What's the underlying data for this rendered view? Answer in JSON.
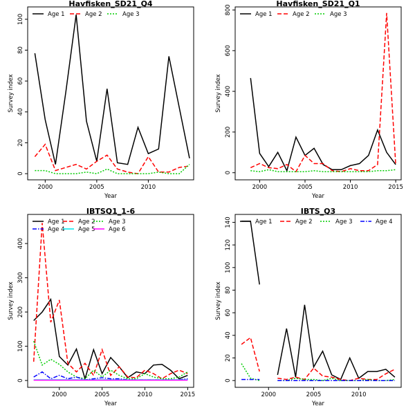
{
  "chart_data": [
    {
      "type": "line",
      "title": "Havfisken_SD21_Q4",
      "xlabel": "Year",
      "ylabel": "Survey index",
      "xlim": [
        1998.3,
        2014.4
      ],
      "ylim": [
        -4,
        108
      ],
      "xticks": [
        2000,
        2005,
        2010
      ],
      "yticks": [
        0,
        20,
        40,
        60,
        80,
        100
      ],
      "legend_position": "top-left",
      "legend_columns": 3,
      "series": [
        {
          "name": "Age 1",
          "color": "#000000",
          "dash": "solid",
          "x": [
            1999,
            2000,
            2001,
            2002,
            2003,
            2004,
            2005,
            2006,
            2007,
            2008,
            2009,
            2010,
            2011,
            2012,
            2013,
            2014
          ],
          "y": [
            78,
            35,
            6,
            53,
            103,
            34,
            8,
            55,
            7,
            6,
            30,
            13,
            16,
            76,
            43,
            10
          ]
        },
        {
          "name": "Age 2",
          "color": "#ff0000",
          "dash": "dashed",
          "x": [
            1999,
            2000,
            2001,
            2002,
            2003,
            2004,
            2005,
            2006,
            2007,
            2008,
            2009,
            2010,
            2011,
            2012,
            2013,
            2014
          ],
          "y": [
            11,
            19,
            2,
            4,
            6,
            3,
            8,
            12,
            3,
            1,
            0,
            11,
            1,
            1,
            4,
            5
          ]
        },
        {
          "name": "Age 3",
          "color": "#00cc00",
          "dash": "dotted",
          "x": [
            1999,
            2000,
            2001,
            2002,
            2003,
            2004,
            2005,
            2006,
            2007,
            2008,
            2009,
            2010,
            2011,
            2012,
            2013,
            2014
          ],
          "y": [
            2,
            2,
            0,
            0,
            0,
            1,
            0,
            3,
            0,
            0,
            0,
            0,
            1,
            0,
            0,
            6
          ]
        }
      ]
    },
    {
      "type": "line",
      "title": "Havfisken_SD21_Q1",
      "xlabel": "Year",
      "ylabel": "Survey index",
      "xlim": [
        1997.3,
        2015.6
      ],
      "ylim": [
        -35,
        815
      ],
      "xticks": [
        2000,
        2005,
        2010,
        2015
      ],
      "yticks": [
        0,
        200,
        400,
        600,
        800
      ],
      "legend_position": "top-left",
      "legend_columns": 3,
      "series": [
        {
          "name": "Age 1",
          "color": "#000000",
          "dash": "solid",
          "x": [
            1999,
            2000,
            2001,
            2002,
            2003,
            2004,
            2005,
            2006,
            2007,
            2008,
            2009,
            2010,
            2011,
            2012,
            2013,
            2014,
            2015
          ],
          "y": [
            465,
            95,
            30,
            100,
            10,
            175,
            85,
            120,
            40,
            15,
            15,
            35,
            45,
            85,
            210,
            100,
            40
          ]
        },
        {
          "name": "Age 2",
          "color": "#ff0000",
          "dash": "dashed",
          "x": [
            1999,
            2000,
            2001,
            2002,
            2003,
            2004,
            2005,
            2006,
            2007,
            2008,
            2009,
            2010,
            2011,
            2012,
            2013,
            2014,
            2015
          ],
          "y": [
            25,
            45,
            25,
            20,
            40,
            5,
            85,
            45,
            45,
            10,
            5,
            20,
            10,
            10,
            40,
            785,
            40
          ]
        },
        {
          "name": "Age 3",
          "color": "#00cc00",
          "dash": "dotted",
          "x": [
            1999,
            2000,
            2001,
            2002,
            2003,
            2004,
            2005,
            2006,
            2007,
            2008,
            2009,
            2010,
            2011,
            2012,
            2013,
            2014,
            2015
          ],
          "y": [
            10,
            5,
            15,
            5,
            5,
            5,
            5,
            10,
            5,
            5,
            5,
            5,
            5,
            5,
            10,
            10,
            15
          ]
        }
      ]
    },
    {
      "type": "line",
      "title": "IBTSQ1_1-6",
      "xlabel": "Year",
      "ylabel": "Survey index",
      "xlim": [
        1996.3,
        2015.7
      ],
      "ylim": [
        -20,
        485
      ],
      "xticks": [
        2000,
        2005,
        2010,
        2015
      ],
      "yticks": [
        0,
        100,
        200,
        300,
        400
      ],
      "legend_position": "top-left",
      "legend_columns": 3,
      "series": [
        {
          "name": "Age 1",
          "color": "#000000",
          "dash": "solid",
          "x": [
            1997,
            1998,
            1999,
            2000,
            2001,
            2002,
            2003,
            2004,
            2005,
            2006,
            2007,
            2008,
            2009,
            2010,
            2011,
            2012,
            2013,
            2014,
            2015
          ],
          "y": [
            175,
            200,
            237,
            70,
            45,
            92,
            5,
            90,
            20,
            67,
            40,
            8,
            25,
            20,
            45,
            47,
            30,
            5,
            15
          ]
        },
        {
          "name": "Age 2",
          "color": "#ff0000",
          "dash": "dashed",
          "x": [
            1997,
            1998,
            1999,
            2000,
            2001,
            2002,
            2003,
            2004,
            2005,
            2006,
            2007,
            2008,
            2009,
            2010,
            2011,
            2012,
            2013,
            2014,
            2015
          ],
          "y": [
            55,
            460,
            170,
            235,
            50,
            25,
            50,
            15,
            90,
            15,
            40,
            10,
            8,
            30,
            20,
            5,
            20,
            30,
            20
          ]
        },
        {
          "name": "Age 3",
          "color": "#00cc00",
          "dash": "dotted",
          "x": [
            1997,
            1998,
            1999,
            2000,
            2001,
            2002,
            2003,
            2004,
            2005,
            2006,
            2007,
            2008,
            2009,
            2010,
            2011,
            2012,
            2013,
            2014,
            2015
          ],
          "y": [
            115,
            45,
            62,
            47,
            25,
            10,
            5,
            30,
            10,
            30,
            15,
            5,
            5,
            20,
            10,
            5,
            5,
            10,
            25
          ]
        },
        {
          "name": "Age 4",
          "color": "#0000ff",
          "dash": "dashdot",
          "x": [
            1997,
            1998,
            1999,
            2000,
            2001,
            2002,
            2003,
            2004,
            2005,
            2006,
            2007,
            2008,
            2009,
            2010,
            2011,
            2012,
            2013,
            2014,
            2015
          ],
          "y": [
            10,
            25,
            5,
            15,
            5,
            10,
            2,
            5,
            8,
            5,
            5,
            2,
            2,
            2,
            2,
            2,
            2,
            2,
            5
          ]
        },
        {
          "name": "Age 5",
          "color": "#00e5ee",
          "dash": "solid",
          "x": [
            1997,
            1998,
            1999,
            2000,
            2001,
            2002,
            2003,
            2004,
            2005,
            2006,
            2007,
            2008,
            2009,
            2010,
            2011,
            2012,
            2013,
            2014,
            2015
          ],
          "y": [
            2,
            2,
            2,
            2,
            2,
            2,
            2,
            2,
            2,
            2,
            2,
            2,
            2,
            2,
            2,
            2,
            2,
            2,
            2
          ]
        },
        {
          "name": "Age 6",
          "color": "#ff00ff",
          "dash": "solid",
          "x": [
            1997,
            1998,
            1999,
            2000,
            2001,
            2002,
            2003,
            2004,
            2005,
            2006,
            2007,
            2008,
            2009,
            2010,
            2011,
            2012,
            2013,
            2014,
            2015
          ],
          "y": [
            1,
            1,
            1,
            1,
            1,
            1,
            1,
            1,
            1,
            1,
            1,
            1,
            1,
            1,
            1,
            1,
            1,
            1,
            1
          ]
        }
      ]
    },
    {
      "type": "line",
      "title": "IBTS_Q3",
      "xlabel": "Year",
      "ylabel": "Survey index",
      "xlim": [
        1996.3,
        2014.7
      ],
      "ylim": [
        -6,
        147
      ],
      "xticks": [
        2000,
        2005,
        2010
      ],
      "yticks": [
        0,
        20,
        40,
        60,
        80,
        100,
        120,
        140
      ],
      "legend_position": "top-left",
      "legend_columns": 4,
      "series": [
        {
          "name": "Age 1",
          "color": "#000000",
          "dash": "solid",
          "x": [
            1997,
            1998,
            1999,
            null,
            2001,
            2002,
            2003,
            2004,
            2005,
            2006,
            2007,
            2008,
            2009,
            2010,
            2011,
            2012,
            2013,
            2014
          ],
          "y": [
            141,
            141,
            85,
            null,
            5,
            46,
            3,
            67,
            12,
            26,
            5,
            1,
            20,
            2,
            8,
            8,
            10,
            3
          ]
        },
        {
          "name": "Age 2",
          "color": "#ff0000",
          "dash": "dashed",
          "x": [
            1997,
            1998,
            1999,
            null,
            2001,
            2002,
            2003,
            2004,
            2005,
            2006,
            2007,
            2008,
            2009,
            2010,
            2011,
            2012,
            2013,
            2014
          ],
          "y": [
            32,
            38,
            8,
            null,
            2,
            1,
            3,
            1,
            11,
            4,
            3,
            1,
            0,
            2,
            1,
            1,
            6,
            10
          ]
        },
        {
          "name": "Age 3",
          "color": "#00cc00",
          "dash": "dotted",
          "x": [
            1997,
            1998,
            1999,
            null,
            2001,
            2002,
            2003,
            2004,
            2005,
            2006,
            2007,
            2008,
            2009,
            2010,
            2011,
            2012,
            2013,
            2014
          ],
          "y": [
            15,
            2,
            0,
            null,
            0,
            0,
            2,
            1,
            1,
            0,
            2,
            0,
            0,
            0,
            1,
            0,
            0,
            1
          ]
        },
        {
          "name": "Age 4",
          "color": "#0000ff",
          "dash": "dashdot",
          "x": [
            1997,
            1998,
            1999,
            null,
            2001,
            2002,
            2003,
            2004,
            2005,
            2006,
            2007,
            2008,
            2009,
            2010,
            2011,
            2012,
            2013,
            2014
          ],
          "y": [
            1,
            1,
            1,
            null,
            0,
            0,
            0,
            0,
            0,
            0,
            0,
            0,
            0,
            0,
            0,
            0,
            0,
            0
          ]
        }
      ]
    }
  ]
}
